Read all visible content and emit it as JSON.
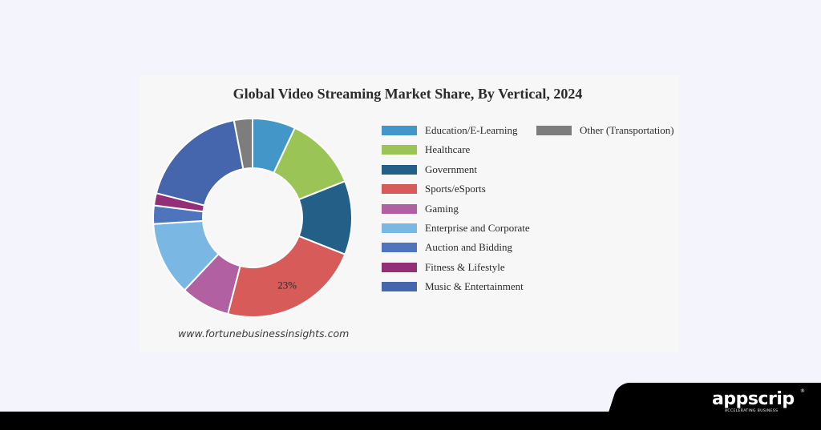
{
  "chart_data": {
    "type": "pie",
    "donut": true,
    "title": "Global Video Streaming Market Share, By Vertical, 2024",
    "labels": [
      "Education/E-Learning",
      "Healthcare",
      "Government",
      "Sports/eSports",
      "Gaming",
      "Enterprise and Corporate",
      "Auction and Bidding",
      "Fitness & Lifestyle",
      "Music & Entertainment",
      "Other (Transportation)"
    ],
    "values": [
      7,
      12,
      12,
      23,
      8,
      12,
      3,
      2,
      18,
      3
    ],
    "colors": [
      "#4297c8",
      "#9bc456",
      "#235f87",
      "#d65b59",
      "#b160a1",
      "#7bb7e3",
      "#4f74be",
      "#932f76",
      "#4565ac",
      "#7d7d7d"
    ],
    "data_labels": [
      {
        "index": 3,
        "text": "23%"
      }
    ],
    "legend_position": "right"
  },
  "source_text": "www.fortunebusinessinsights.com",
  "brand": {
    "name": "appscrip",
    "tagline": "ACCELERATING BUSINESS",
    "registered_mark": "®"
  }
}
